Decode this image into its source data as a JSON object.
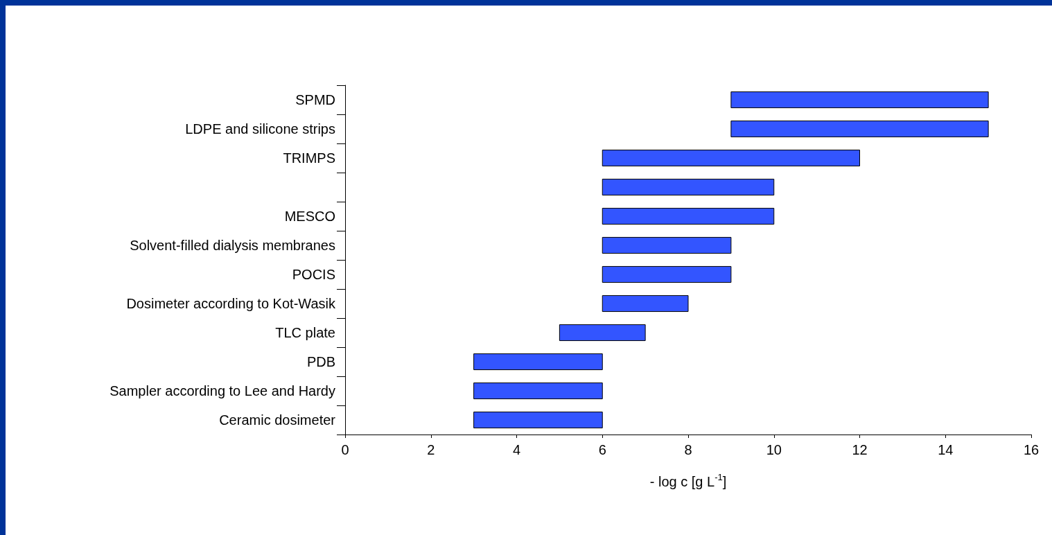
{
  "chart_data": {
    "type": "bar",
    "orientation": "horizontal",
    "xlabel": "- log c [g L$^{-1}$]",
    "categories": [
      "SPMD",
      "LDPE and silicone strips",
      "TRIMPS",
      null,
      "MESCO",
      "Solvent-filled dialysis membranes",
      "POCIS",
      "Dosimeter according to Kot-Wasik",
      "TLC plate",
      "PDB",
      "Sampler according to Lee and Hardy",
      "Ceramic dosimeter"
    ],
    "base": [
      9,
      9,
      6,
      6,
      6,
      6,
      6,
      6,
      5,
      3,
      3,
      3
    ],
    "values": [
      6,
      6,
      6,
      4,
      4,
      3,
      3,
      2,
      2,
      3,
      3,
      3
    ],
    "color": "#3355ff",
    "xlim": [
      0,
      16
    ],
    "xticks": [
      0,
      2,
      4,
      6,
      8,
      10,
      12,
      14,
      16
    ],
    "grid": false
  }
}
